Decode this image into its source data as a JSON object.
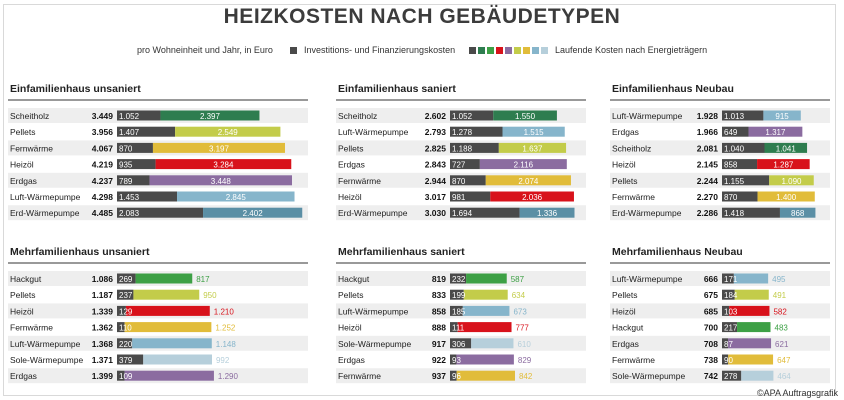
{
  "header": {
    "title": "HEIZKOSTEN NACH GEBÄUDETYPEN",
    "subtitle": "pro Wohneinheit und Jahr, in Euro",
    "legend_invest": "Investitions- und Finanzierungskosten",
    "legend_running": "Laufende Kosten nach Energieträgern"
  },
  "footer": {
    "credit": "©APA Auftragsgrafik"
  },
  "colors": {
    "invest": "#4a4a4a",
    "Scheitholz": "#2e7d4f",
    "Pellets": "#c3cc4a",
    "Fernwärme": "#e1bc3a",
    "Heizöl": "#d8121b",
    "Erdgas": "#8b6ca0",
    "Luft-Wärmepumpe": "#86b5cb",
    "Erd-Wärmepumpe": "#5b8fa5",
    "Hackgut": "#3da045",
    "Sole-Wärmepumpe": "#b6cfdb",
    "legend_swatches": [
      "#4a4a4a",
      "#2e7d4f",
      "#3da045",
      "#d8121b",
      "#8b6ca0",
      "#c3cc4a",
      "#e1bc3a",
      "#86b5cb",
      "#b6cfdb"
    ]
  },
  "chart_data": [
    {
      "type": "bar",
      "stacked": true,
      "title": "Einfamilienhaus unsaniert",
      "xlim": [
        0,
        4600
      ],
      "series_names": [
        "Investitions- und Finanzierungskosten",
        "Laufende Kosten"
      ],
      "rows": [
        {
          "label": "Scheitholz",
          "total": "3.449",
          "invest": 1052,
          "invest_label": "1.052",
          "running": 2397,
          "running_label": "2.397"
        },
        {
          "label": "Pellets",
          "total": "3.956",
          "invest": 1407,
          "invest_label": "1.407",
          "running": 2549,
          "running_label": "2.549"
        },
        {
          "label": "Fernwärme",
          "total": "4.067",
          "invest": 870,
          "invest_label": "870",
          "running": 3197,
          "running_label": "3.197"
        },
        {
          "label": "Heizöl",
          "total": "4.219",
          "invest": 935,
          "invest_label": "935",
          "running": 3284,
          "running_label": "3.284"
        },
        {
          "label": "Erdgas",
          "total": "4.237",
          "invest": 789,
          "invest_label": "789",
          "running": 3448,
          "running_label": "3.448"
        },
        {
          "label": "Luft-Wärmepumpe",
          "total": "4.298",
          "invest": 1453,
          "invest_label": "1.453",
          "running": 2845,
          "running_label": "2.845"
        },
        {
          "label": "Erd-Wärmepumpe",
          "total": "4.485",
          "invest": 2083,
          "invest_label": "2.083",
          "running": 2402,
          "running_label": "2.402"
        }
      ]
    },
    {
      "type": "bar",
      "stacked": true,
      "title": "Einfamilienhaus saniert",
      "xlim": [
        0,
        4600
      ],
      "series_names": [
        "Investitions- und Finanzierungskosten",
        "Laufende Kosten"
      ],
      "rows": [
        {
          "label": "Scheitholz",
          "total": "2.602",
          "invest": 1052,
          "invest_label": "1.052",
          "running": 1550,
          "running_label": "1.550"
        },
        {
          "label": "Luft-Wärmepumpe",
          "total": "2.793",
          "invest": 1278,
          "invest_label": "1.278",
          "running": 1515,
          "running_label": "1.515"
        },
        {
          "label": "Pellets",
          "total": "2.825",
          "invest": 1188,
          "invest_label": "1.188",
          "running": 1637,
          "running_label": "1.637"
        },
        {
          "label": "Erdgas",
          "total": "2.843",
          "invest": 727,
          "invest_label": "727",
          "running": 2116,
          "running_label": "2.116"
        },
        {
          "label": "Fernwärme",
          "total": "2.944",
          "invest": 870,
          "invest_label": "870",
          "running": 2074,
          "running_label": "2.074"
        },
        {
          "label": "Heizöl",
          "total": "3.017",
          "invest": 981,
          "invest_label": "981",
          "running": 2036,
          "running_label": "2.036"
        },
        {
          "label": "Erd-Wärmepumpe",
          "total": "3.030",
          "invest": 1694,
          "invest_label": "1.694",
          "running": 1336,
          "running_label": "1.336"
        }
      ]
    },
    {
      "type": "bar",
      "stacked": true,
      "title": "Einfamilienhaus Neubau",
      "xlim": [
        0,
        4600
      ],
      "series_names": [
        "Investitions- und Finanzierungskosten",
        "Laufende Kosten"
      ],
      "rows": [
        {
          "label": "Luft-Wärmepumpe",
          "total": "1.928",
          "invest": 1013,
          "invest_label": "1.013",
          "running": 915,
          "running_label": "915"
        },
        {
          "label": "Erdgas",
          "total": "1.966",
          "invest": 649,
          "invest_label": "649",
          "running": 1317,
          "running_label": "1.317"
        },
        {
          "label": "Scheitholz",
          "total": "2.081",
          "invest": 1040,
          "invest_label": "1.040",
          "running": 1041,
          "running_label": "1.041"
        },
        {
          "label": "Heizöl",
          "total": "2.145",
          "invest": 858,
          "invest_label": "858",
          "running": 1287,
          "running_label": "1.287"
        },
        {
          "label": "Pellets",
          "total": "2.244",
          "invest": 1155,
          "invest_label": "1.155",
          "running": 1090,
          "running_label": "1.090"
        },
        {
          "label": "Fernwärme",
          "total": "2.270",
          "invest": 870,
          "invest_label": "870",
          "running": 1400,
          "running_label": "1.400"
        },
        {
          "label": "Erd-Wärmepumpe",
          "total": "2.286",
          "invest": 1418,
          "invest_label": "1.418",
          "running": 868,
          "running_label": "868"
        }
      ]
    },
    {
      "type": "bar",
      "stacked": true,
      "title": "Mehrfamilienhaus unsaniert",
      "xlim": [
        0,
        1400
      ],
      "series_names": [
        "Investitions- und Finanzierungskosten",
        "Laufende Kosten"
      ],
      "rows": [
        {
          "label": "Hackgut",
          "total": "1.086",
          "invest": 269,
          "invest_label": "269",
          "running": 817,
          "running_label": "817"
        },
        {
          "label": "Pellets",
          "total": "1.187",
          "invest": 237,
          "invest_label": "237",
          "running": 950,
          "running_label": "950"
        },
        {
          "label": "Heizöl",
          "total": "1.339",
          "invest": 129,
          "invest_label": "129",
          "running": 1210,
          "running_label": "1.210"
        },
        {
          "label": "Fernwärme",
          "total": "1.362",
          "invest": 110,
          "invest_label": "110",
          "running": 1252,
          "running_label": "1.252"
        },
        {
          "label": "Luft-Wärmepumpe",
          "total": "1.368",
          "invest": 220,
          "invest_label": "220",
          "running": 1148,
          "running_label": "1.148"
        },
        {
          "label": "Sole-Wärmepumpe",
          "total": "1.371",
          "invest": 379,
          "invest_label": "379",
          "running": 992,
          "running_label": "992"
        },
        {
          "label": "Erdgas",
          "total": "1.399",
          "invest": 109,
          "invest_label": "109",
          "running": 1290,
          "running_label": "1.290"
        }
      ]
    },
    {
      "type": "bar",
      "stacked": true,
      "title": "Mehrfamilienhaus saniert",
      "xlim": [
        0,
        1400
      ],
      "series_names": [
        "Investitions- und Finanzierungskosten",
        "Laufende Kosten"
      ],
      "rows": [
        {
          "label": "Hackgut",
          "total": "819",
          "invest": 232,
          "invest_label": "232",
          "running": 587,
          "running_label": "587"
        },
        {
          "label": "Pellets",
          "total": "833",
          "invest": 199,
          "invest_label": "199",
          "running": 634,
          "running_label": "634"
        },
        {
          "label": "Luft-Wärmepumpe",
          "total": "858",
          "invest": 185,
          "invest_label": "185",
          "running": 673,
          "running_label": "673"
        },
        {
          "label": "Heizöl",
          "total": "888",
          "invest": 111,
          "invest_label": "111",
          "running": 777,
          "running_label": "777"
        },
        {
          "label": "Sole-Wärmepumpe",
          "total": "917",
          "invest": 306,
          "invest_label": "306",
          "running": 610,
          "running_label": "610"
        },
        {
          "label": "Erdgas",
          "total": "922",
          "invest": 93,
          "invest_label": "93",
          "running": 829,
          "running_label": "829"
        },
        {
          "label": "Fernwärme",
          "total": "937",
          "invest": 96,
          "invest_label": "96",
          "running": 842,
          "running_label": "842"
        }
      ]
    },
    {
      "type": "bar",
      "stacked": true,
      "title": "Mehrfamilienhaus Neubau",
      "xlim": [
        0,
        1400
      ],
      "series_names": [
        "Investitions- und Finanzierungskosten",
        "Laufende Kosten"
      ],
      "rows": [
        {
          "label": "Luft-Wärmepumpe",
          "total": "666",
          "invest": 171,
          "invest_label": "171",
          "running": 495,
          "running_label": "495"
        },
        {
          "label": "Pellets",
          "total": "675",
          "invest": 184,
          "invest_label": "184",
          "running": 491,
          "running_label": "491"
        },
        {
          "label": "Heizöl",
          "total": "685",
          "invest": 103,
          "invest_label": "103",
          "running": 582,
          "running_label": "582"
        },
        {
          "label": "Hackgut",
          "total": "700",
          "invest": 217,
          "invest_label": "217",
          "running": 483,
          "running_label": "483"
        },
        {
          "label": "Erdgas",
          "total": "708",
          "invest": 87,
          "invest_label": "87",
          "running": 621,
          "running_label": "621"
        },
        {
          "label": "Fernwärme",
          "total": "738",
          "invest": 90,
          "invest_label": "90",
          "running": 647,
          "running_label": "647"
        },
        {
          "label": "Sole-Wärmepumpe",
          "total": "742",
          "invest": 278,
          "invest_label": "278",
          "running": 464,
          "running_label": "464"
        }
      ]
    }
  ]
}
